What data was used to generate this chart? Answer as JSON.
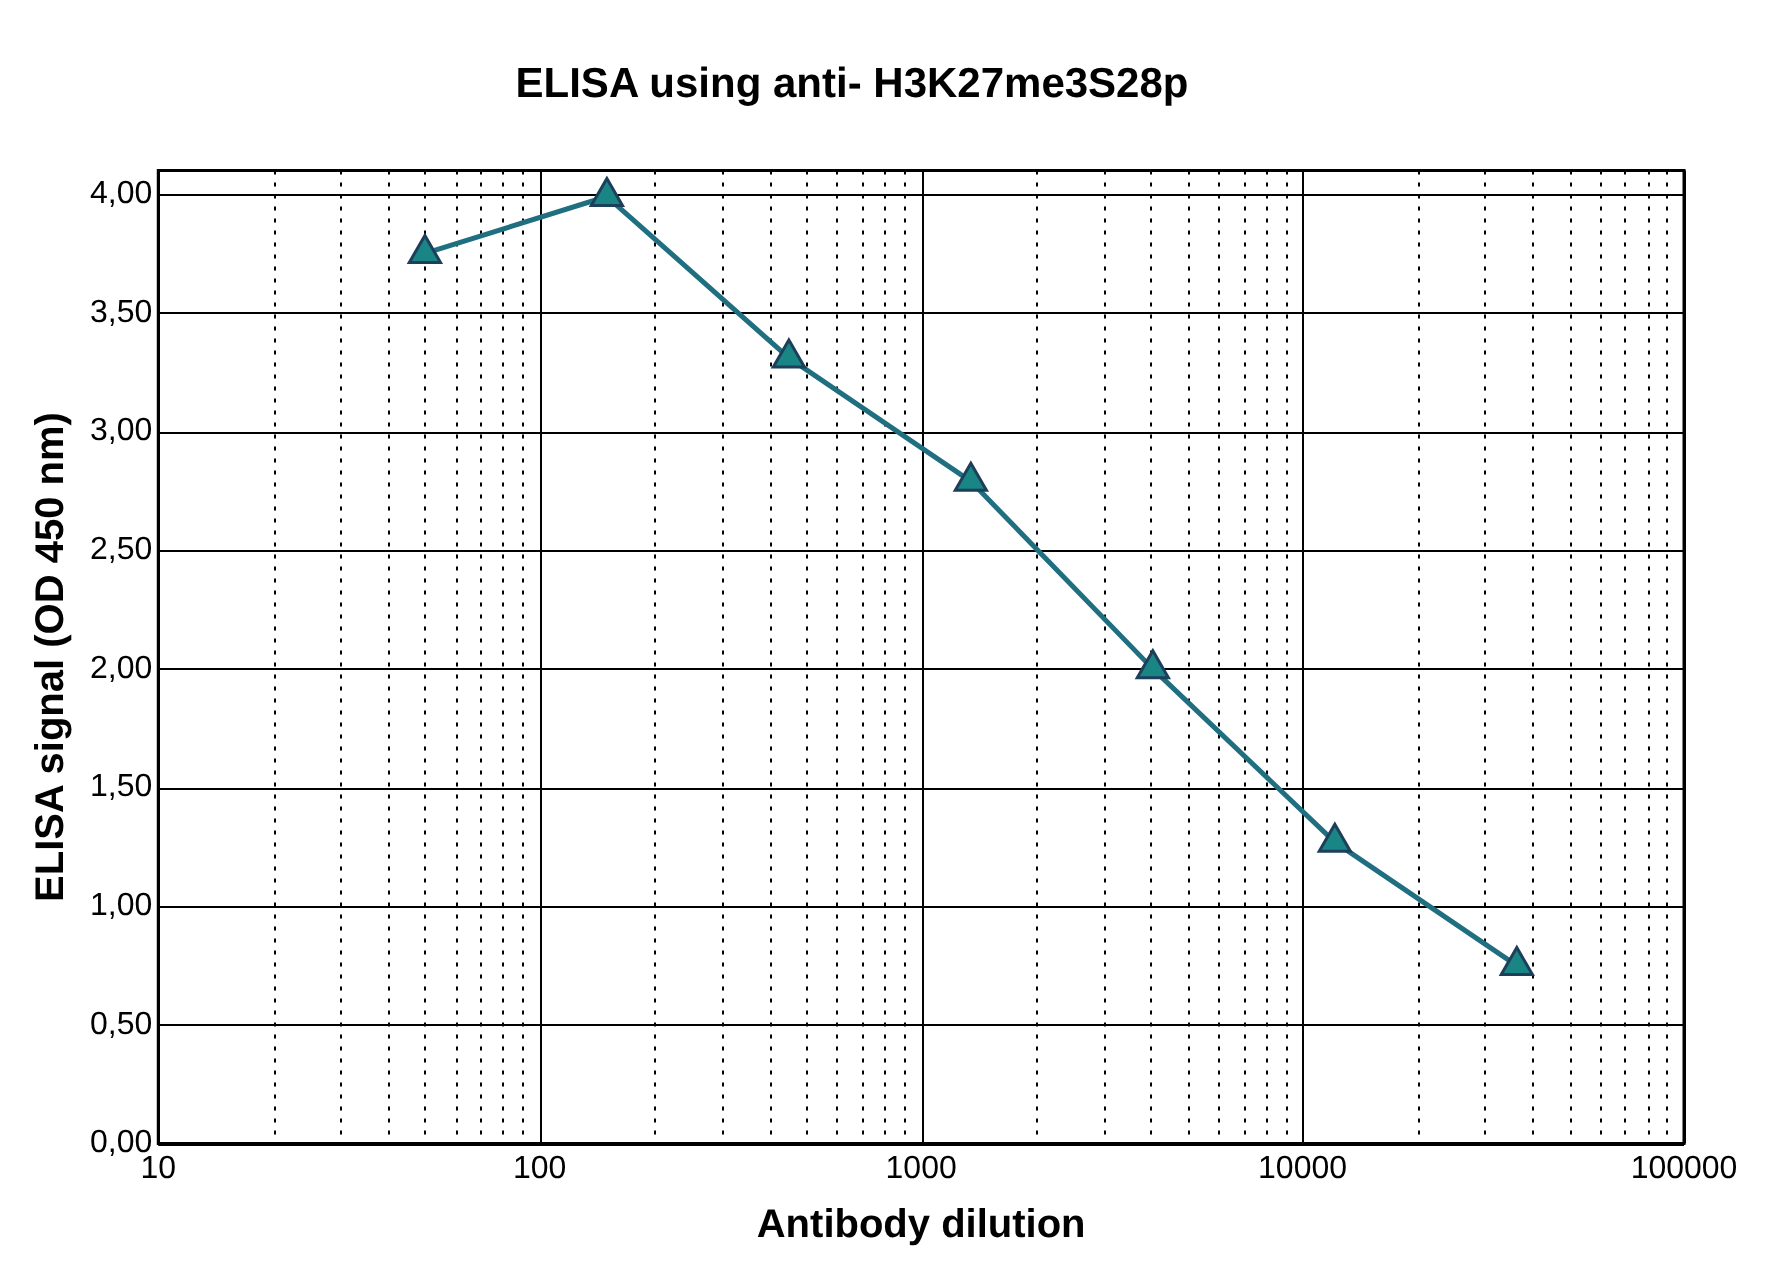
{
  "chart_data": {
    "type": "line",
    "title": "ELISA using anti- H3K27me3S28p",
    "xlabel": "Antibody dilution",
    "ylabel": "ELISA signal (OD 450 nm)",
    "x": [
      50,
      150,
      450,
      1350,
      4050,
      12150,
      36450
    ],
    "series": [
      {
        "color": "#1f6f80",
        "values": [
          3.75,
          3.99,
          3.31,
          2.79,
          2.0,
          1.27,
          0.75
        ]
      }
    ],
    "log": "x",
    "xlim": [
      10,
      100000
    ],
    "ylim": [
      0,
      4.1
    ],
    "xticks": [
      10,
      {
        "value": 20,
        "label": null
      },
      {
        "value": 30,
        "label": null
      },
      {
        "value": 40,
        "label": null
      },
      {
        "value": 50,
        "label": null
      },
      {
        "value": 60,
        "label": null
      },
      {
        "value": 70,
        "label": null
      },
      {
        "value": 80,
        "label": null
      },
      {
        "value": 90,
        "label": null
      },
      100,
      {
        "value": 200,
        "label": null
      },
      {
        "value": 300,
        "label": null
      },
      {
        "value": 400,
        "label": null
      },
      {
        "value": 500,
        "label": null
      },
      {
        "value": 600,
        "label": null
      },
      {
        "value": 700,
        "label": null
      },
      {
        "value": 800,
        "label": null
      },
      {
        "value": 900,
        "label": null
      },
      1000,
      {
        "value": 2000,
        "label": null
      },
      {
        "value": 3000,
        "label": null
      },
      {
        "value": 4000,
        "label": null
      },
      {
        "value": 5000,
        "label": null
      },
      {
        "value": 6000,
        "label": null
      },
      {
        "value": 7000,
        "label": null
      },
      {
        "value": 8000,
        "label": null
      },
      {
        "value": 9000,
        "label": null
      },
      10000,
      {
        "value": 20000,
        "label": null
      },
      {
        "value": 30000,
        "label": null
      },
      {
        "value": 40000,
        "label": null
      },
      {
        "value": 50000,
        "label": null
      },
      {
        "value": 60000,
        "label": null
      },
      {
        "value": 70000,
        "label": null
      },
      {
        "value": 80000,
        "label": null
      },
      {
        "value": 90000,
        "label": null
      },
      100000
    ],
    "yticks": [
      {
        "value": 0,
        "label": "0,00"
      },
      {
        "value": 0.5,
        "label": "0,50"
      },
      {
        "value": 1,
        "label": "1,00"
      },
      {
        "value": 1.5,
        "label": "1,50"
      },
      {
        "value": 2,
        "label": "2,00"
      },
      {
        "value": 2.5,
        "label": "2,50"
      },
      {
        "value": 3,
        "label": "3,00"
      },
      {
        "value": 3.5,
        "label": "3,50"
      },
      {
        "value": 4,
        "label": "4,00"
      }
    ],
    "grid": true,
    "marker": "triangle",
    "line_style": "solid",
    "legend": false
  }
}
